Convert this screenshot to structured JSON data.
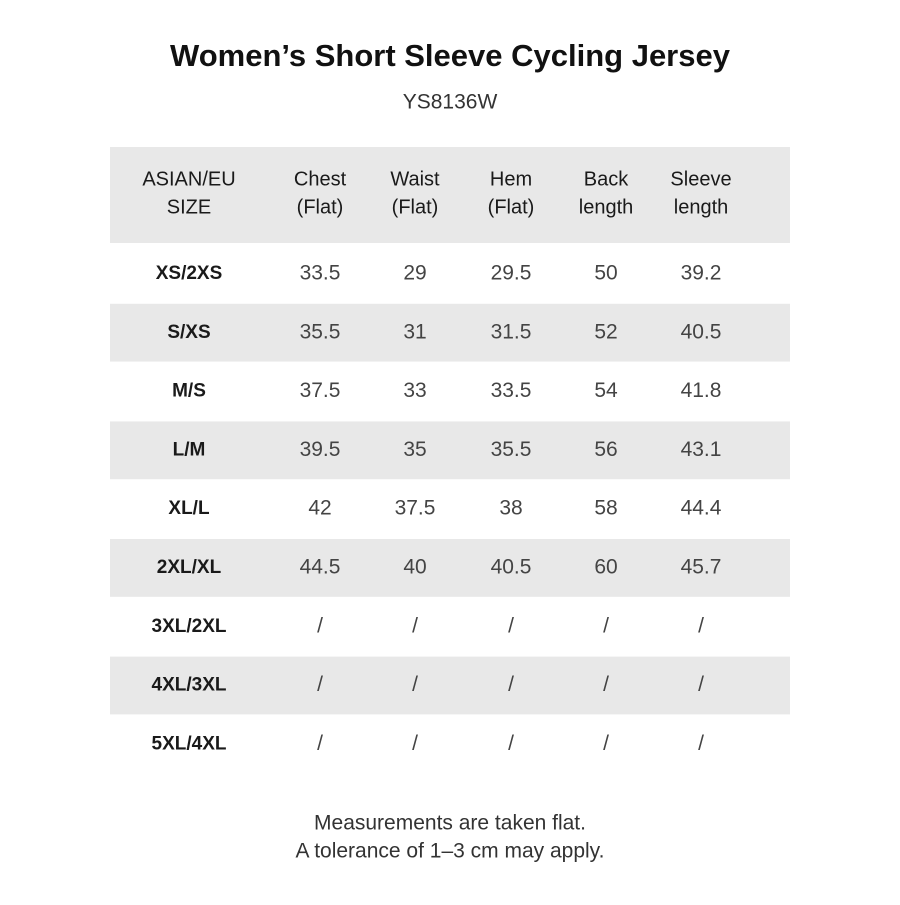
{
  "header": {
    "title": "Women’s Short Sleeve Cycling Jersey",
    "subtitle": "YS8136W"
  },
  "table": {
    "headers": [
      [
        "ASIAN/EU",
        "SIZE"
      ],
      [
        "Chest",
        "(Flat)"
      ],
      [
        "Waist",
        "(Flat)"
      ],
      [
        "Hem",
        "(Flat)"
      ],
      [
        "Back",
        "length"
      ],
      [
        "Sleeve",
        "length"
      ]
    ],
    "rows": [
      [
        "XS/2XS",
        "33.5",
        "29",
        "29.5",
        "50",
        "39.2"
      ],
      [
        "S/XS",
        "35.5",
        "31",
        "31.5",
        "52",
        "40.5"
      ],
      [
        "M/S",
        "37.5",
        "33",
        "33.5",
        "54",
        "41.8"
      ],
      [
        "L/M",
        "39.5",
        "35",
        "35.5",
        "56",
        "43.1"
      ],
      [
        "XL/L",
        "42",
        "37.5",
        "38",
        "58",
        "44.4"
      ],
      [
        "2XL/XL",
        "44.5",
        "40",
        "40.5",
        "60",
        "45.7"
      ],
      [
        "3XL/2XL",
        "/",
        "/",
        "/",
        "/",
        "/"
      ],
      [
        "4XL/3XL",
        "/",
        "/",
        "/",
        "/",
        "/"
      ],
      [
        "5XL/4XL",
        "/",
        "/",
        "/",
        "/",
        "/"
      ]
    ]
  },
  "footnote": [
    "Measurements are taken flat.",
    "A tolerance of 1–3 cm may apply."
  ]
}
